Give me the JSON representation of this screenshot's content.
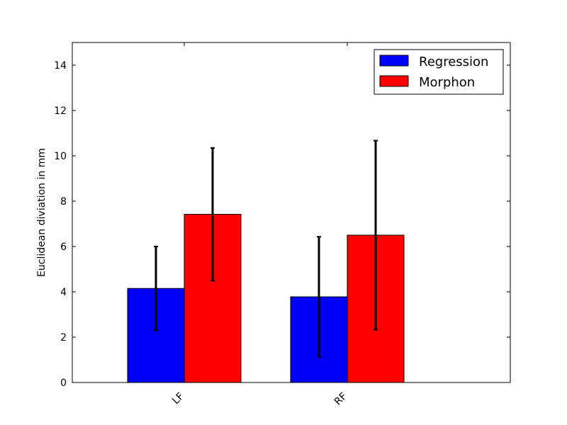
{
  "chart_data": {
    "type": "bar",
    "title": "",
    "xlabel": "",
    "ylabel": "Euclidean diviation in mm",
    "categories": [
      "LF",
      "RF"
    ],
    "ylim": [
      0,
      15
    ],
    "yticks": [
      0,
      2,
      4,
      6,
      8,
      10,
      12,
      14
    ],
    "series": [
      {
        "name": "Regression",
        "color": "#0000ff",
        "values": [
          4.15,
          3.78
        ],
        "errors": [
          1.85,
          2.65
        ]
      },
      {
        "name": "Morphon",
        "color": "#ff0000",
        "values": [
          7.42,
          6.5
        ],
        "errors": [
          2.93,
          4.17
        ]
      }
    ],
    "legend_position": "top-right",
    "grid": false
  }
}
